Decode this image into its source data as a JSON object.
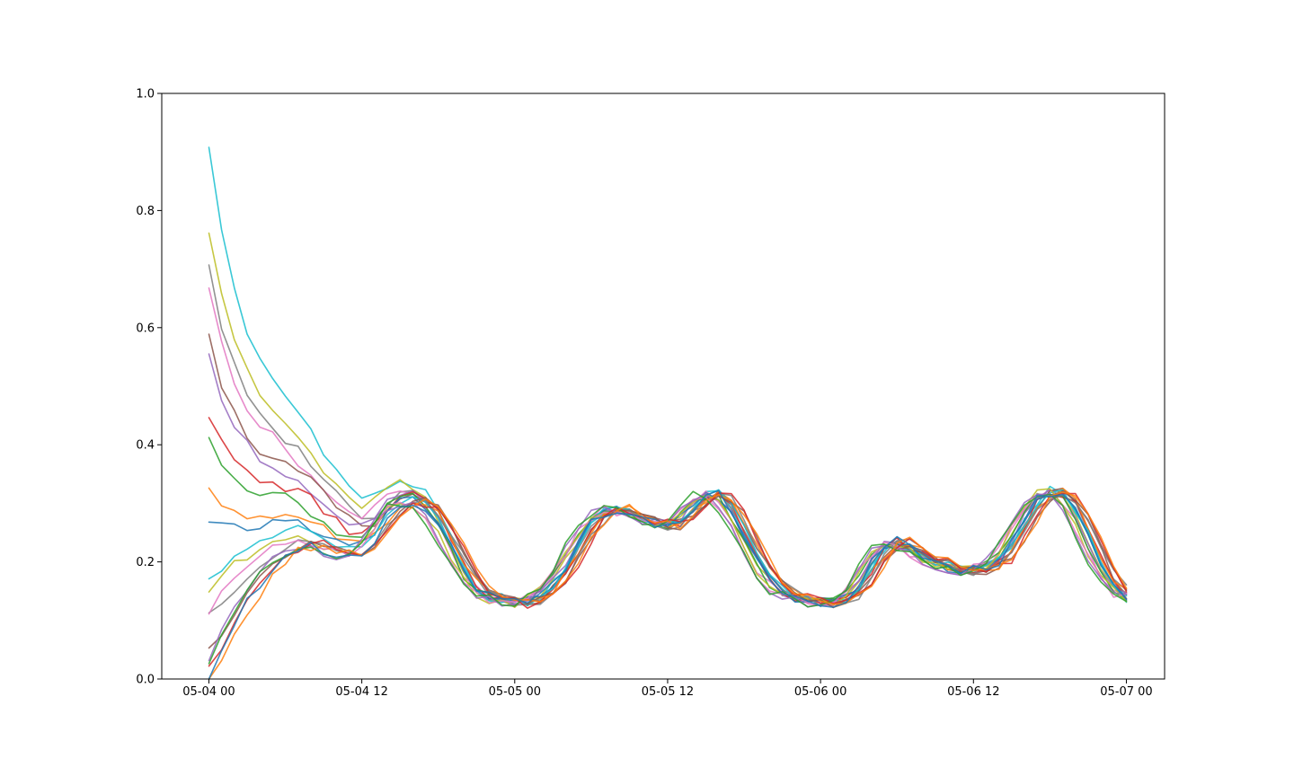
{
  "chart_data": {
    "type": "line",
    "title": "",
    "xlabel": "",
    "ylabel": "",
    "x_ticks": [
      "05-04 00",
      "05-04 12",
      "05-05 00",
      "05-05 12",
      "05-06 00",
      "05-06 12",
      "05-07 00"
    ],
    "y_ticks": [
      "0.0",
      "0.2",
      "0.4",
      "0.6",
      "0.8",
      "1.0"
    ],
    "xlim_hours": [
      -3.7,
      75.0
    ],
    "ylim": [
      0.0,
      1.0
    ],
    "grid": false,
    "legend": "none",
    "x_start_hour": 0,
    "x_step_hours": 1,
    "baseline": [
      0.1,
      0.13,
      0.16,
      0.18,
      0.2,
      0.22,
      0.235,
      0.24,
      0.24,
      0.23,
      0.22,
      0.215,
      0.22,
      0.24,
      0.275,
      0.3,
      0.305,
      0.295,
      0.27,
      0.23,
      0.185,
      0.155,
      0.14,
      0.135,
      0.13,
      0.13,
      0.14,
      0.16,
      0.19,
      0.23,
      0.265,
      0.285,
      0.29,
      0.285,
      0.275,
      0.265,
      0.26,
      0.27,
      0.295,
      0.315,
      0.315,
      0.29,
      0.25,
      0.205,
      0.17,
      0.15,
      0.14,
      0.135,
      0.13,
      0.13,
      0.135,
      0.155,
      0.195,
      0.225,
      0.235,
      0.225,
      0.21,
      0.2,
      0.19,
      0.185,
      0.185,
      0.19,
      0.2,
      0.23,
      0.27,
      0.305,
      0.32,
      0.315,
      0.29,
      0.245,
      0.195,
      0.16,
      0.14
    ],
    "series": [
      {
        "start": 0.89,
        "decay": 4.0,
        "offset": 0.08,
        "phase": 0.0,
        "color": "#17becf"
      },
      {
        "start": 0.75,
        "decay": 4.0,
        "offset": 0.06,
        "phase": 0.3,
        "color": "#bcbd22"
      },
      {
        "start": 0.7,
        "decay": 4.0,
        "offset": 0.05,
        "phase": -0.3,
        "color": "#7f7f7f"
      },
      {
        "start": 0.64,
        "decay": 4.0,
        "offset": 0.04,
        "phase": 0.5,
        "color": "#e377c2"
      },
      {
        "start": 0.59,
        "decay": 4.0,
        "offset": 0.03,
        "phase": -0.5,
        "color": "#8c564b"
      },
      {
        "start": 0.54,
        "decay": 4.0,
        "offset": 0.02,
        "phase": 0.2,
        "color": "#9467bd"
      },
      {
        "start": 0.45,
        "decay": 4.0,
        "offset": 0.02,
        "phase": -0.2,
        "color": "#d62728"
      },
      {
        "start": 0.39,
        "decay": 4.0,
        "offset": 0.01,
        "phase": 0.4,
        "color": "#2ca02c"
      },
      {
        "start": 0.33,
        "decay": 4.0,
        "offset": 0.0,
        "phase": -0.4,
        "color": "#ff7f0e"
      },
      {
        "start": 0.26,
        "decay": 4.0,
        "offset": 0.0,
        "phase": 0.1,
        "color": "#1f77b4"
      },
      {
        "start": 0.18,
        "decay": 4.0,
        "offset": 0.0,
        "phase": -0.1,
        "color": "#17becf"
      },
      {
        "start": 0.135,
        "decay": 4.0,
        "offset": 0.0,
        "phase": 0.6,
        "color": "#bcbd22"
      },
      {
        "start": 0.11,
        "decay": 4.0,
        "offset": 0.0,
        "phase": -0.6,
        "color": "#7f7f7f"
      },
      {
        "start": 0.09,
        "decay": 4.0,
        "offset": 0.0,
        "phase": 0.7,
        "color": "#e377c2"
      },
      {
        "start": 0.06,
        "decay": 4.0,
        "offset": 0.0,
        "phase": -0.7,
        "color": "#8c564b"
      },
      {
        "start": 0.01,
        "decay": 4.0,
        "offset": 0.0,
        "phase": 0.8,
        "color": "#9467bd"
      },
      {
        "start": 0.02,
        "decay": 4.0,
        "offset": 0.0,
        "phase": -0.8,
        "color": "#d62728"
      },
      {
        "start": 0.0,
        "decay": 4.0,
        "offset": 0.0,
        "phase": 0.9,
        "color": "#2ca02c"
      },
      {
        "start": 0.0,
        "decay": 4.0,
        "offset": 0.0,
        "phase": -0.9,
        "color": "#ff7f0e"
      },
      {
        "start": 0.0,
        "decay": 4.0,
        "offset": 0.0,
        "phase": 0.0,
        "color": "#1f77b4"
      }
    ]
  }
}
